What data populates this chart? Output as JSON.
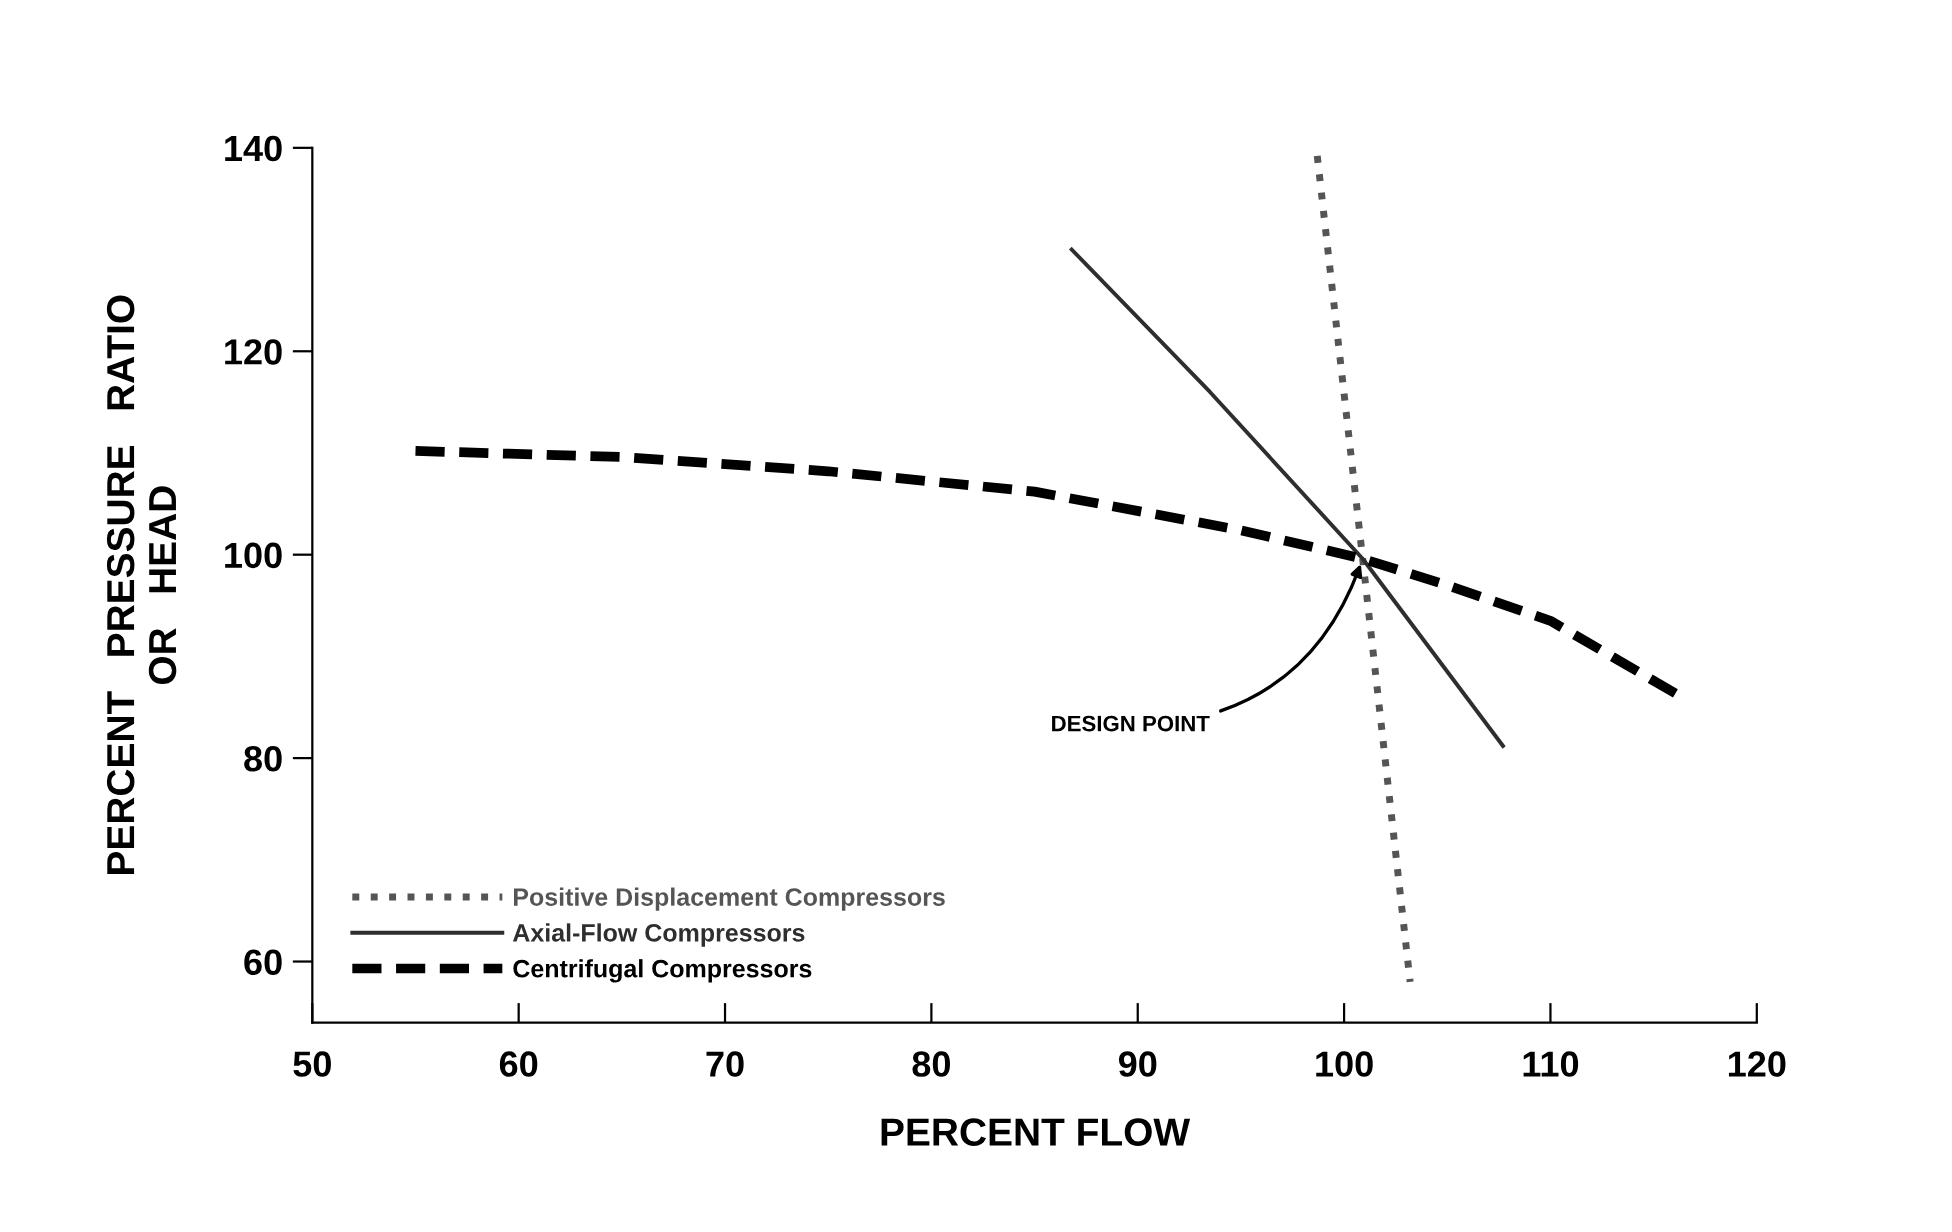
{
  "chart_data": {
    "type": "line",
    "xlabel": "PERCENT FLOW",
    "ylabel": "PERCENT   PRESSURE   RATIO\nOR   HEAD",
    "xlim": [
      50,
      120
    ],
    "xticks": [
      50,
      60,
      70,
      80,
      90,
      100,
      110,
      120
    ],
    "ylim": [
      54,
      140
    ],
    "yticks": [
      60,
      80,
      100,
      120,
      140
    ],
    "grid": false,
    "legend": "bottom left",
    "series": [
      {
        "name": "Positive Displacement Compressors",
        "color": "#555555",
        "line_style": "dotted",
        "x": [
          98.7,
          100.9,
          103.2
        ],
        "values": [
          139.2,
          99.6,
          58
        ]
      },
      {
        "name": "Axial-Flow Compressors",
        "color": "#2e2e2e",
        "line_style": "solid",
        "x": [
          86.8,
          93.5,
          100.9,
          107.7
        ],
        "values": [
          130,
          116,
          99.6,
          81.2
        ]
      },
      {
        "name": "Centrifugal Compressors",
        "color": "#000000",
        "line_style": "dashed",
        "x": [
          55,
          65,
          75,
          85,
          95,
          100.9,
          105,
          110,
          116.2
        ],
        "values": [
          110.2,
          109.6,
          108.2,
          106.2,
          102.4,
          99.6,
          97,
          93.5,
          86.2
        ]
      }
    ],
    "annotations": [
      {
        "text": "DESIGN POINT",
        "x": 100.9,
        "y": 99.6
      }
    ]
  }
}
